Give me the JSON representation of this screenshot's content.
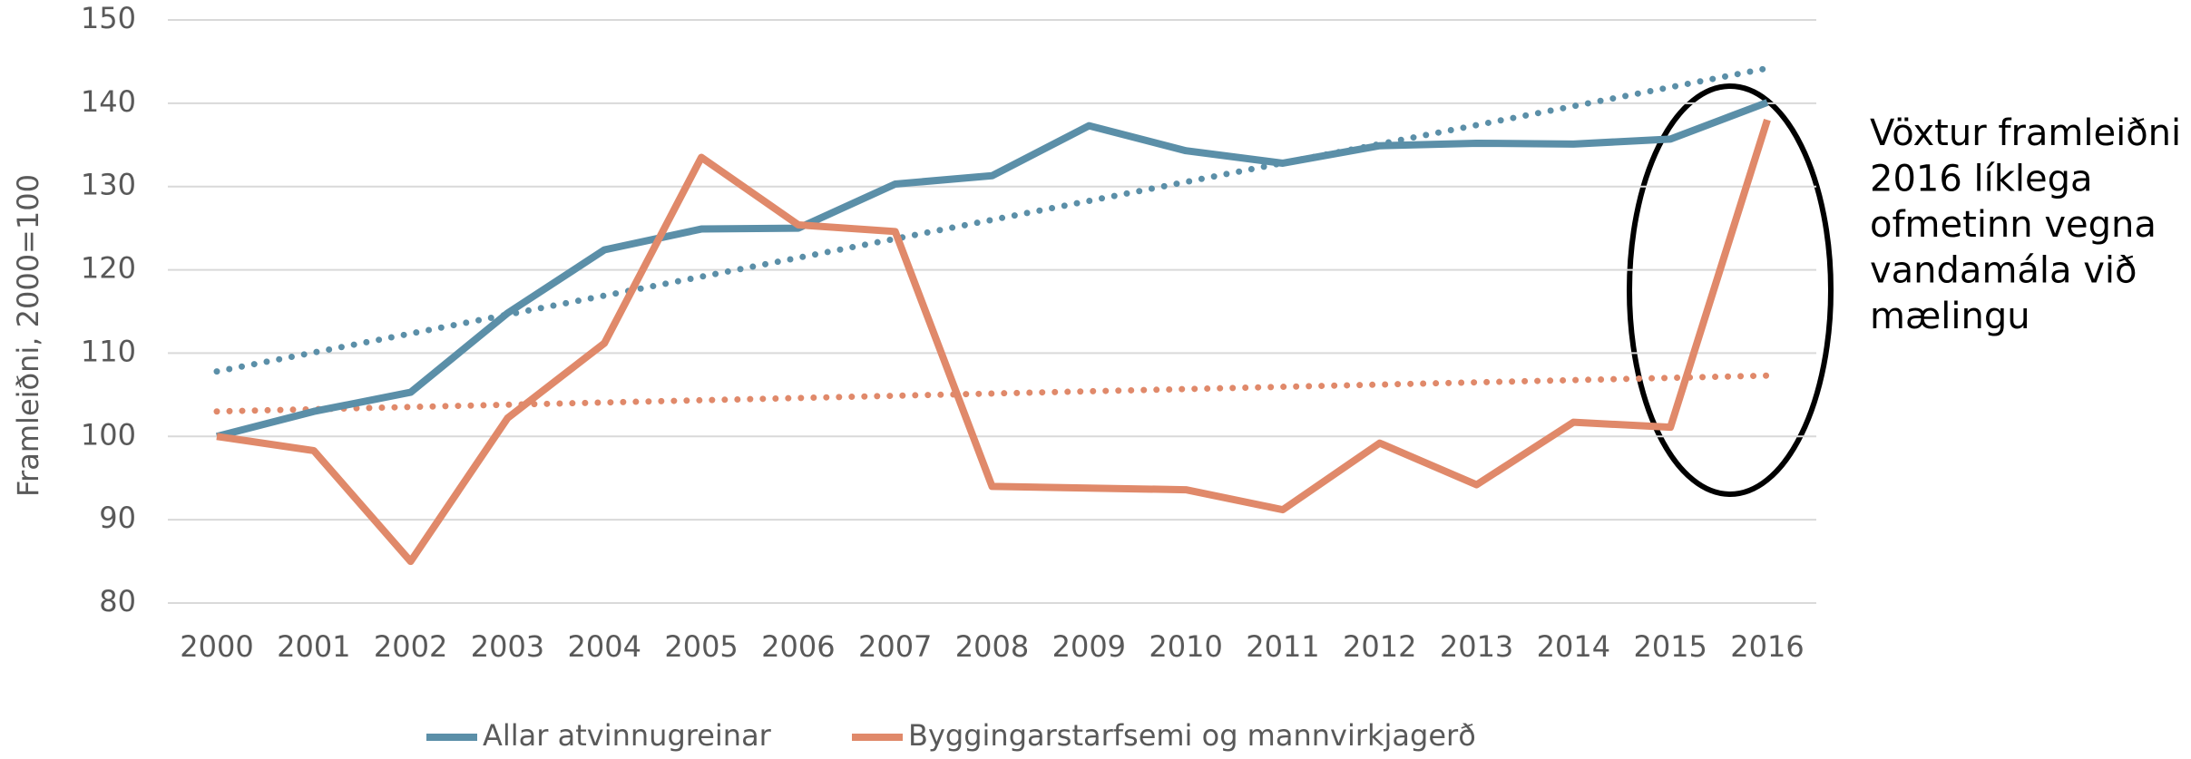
{
  "chart_data": {
    "type": "line",
    "categories": [
      "2000",
      "2001",
      "2002",
      "2003",
      "2004",
      "2005",
      "2006",
      "2007",
      "2008",
      "2009",
      "2010",
      "2011",
      "2012",
      "2013",
      "2014",
      "2015",
      "2016"
    ],
    "series": [
      {
        "name": "Allar atvinnugreinar",
        "color": "#5b8fa8",
        "values": [
          100,
          103,
          105.3,
          114.8,
          122.4,
          124.9,
          125,
          130.3,
          131.3,
          137.3,
          134.3,
          132.8,
          134.9,
          135.2,
          135.1,
          135.7,
          140.1
        ],
        "trendline": [
          107.8,
          144.2
        ]
      },
      {
        "name": "Byggingarstarfsemi og mannvirkjagerð",
        "color": "#e0896a",
        "values": [
          100,
          98.3,
          85,
          102.2,
          111.2,
          133.5,
          125.4,
          124.6,
          94,
          93.8,
          93.6,
          91.2,
          99.2,
          94.2,
          101.7,
          101.1,
          138
        ],
        "trendline": [
          103,
          107.3
        ]
      }
    ],
    "ylabel": "Framleiðni, 2000=100",
    "ylim": [
      80,
      150
    ],
    "yticks": [
      80,
      90,
      100,
      110,
      120,
      130,
      140,
      150
    ],
    "grid": true,
    "annotation": [
      "Vöxtur framleiðni",
      "2016 líklega",
      "ofmetinn vegna",
      "vandamála við",
      "mælingu"
    ]
  }
}
